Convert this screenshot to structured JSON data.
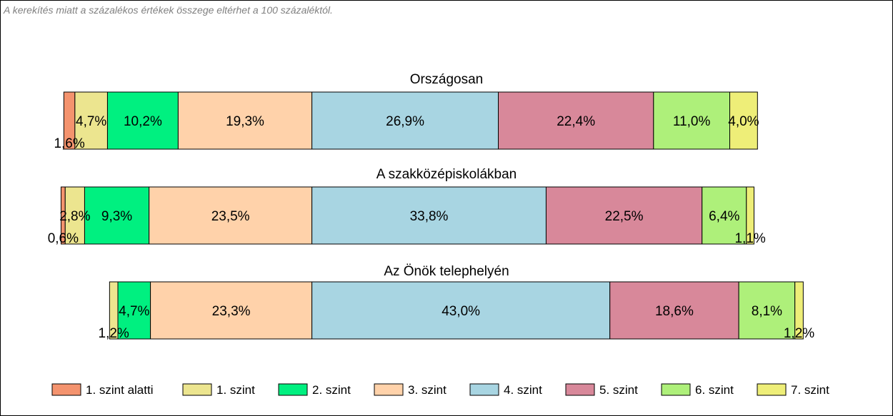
{
  "note": "A kerekítés miatt a  százalékos értékek összege eltérhet a 100 százaléktól.",
  "chart_data": {
    "type": "bar",
    "orientation": "horizontal",
    "stacked": true,
    "percent": true,
    "grid": false,
    "legend_position": "bottom",
    "legend": [
      {
        "label": "1. szint alatti",
        "color": "#F4936E"
      },
      {
        "label": "1. szint",
        "color": "#ECE58F"
      },
      {
        "label": "2. szint",
        "color": "#00F080"
      },
      {
        "label": "3. szint",
        "color": "#FFD2AA"
      },
      {
        "label": "4. szint",
        "color": "#A8D5E2"
      },
      {
        "label": "5. szint",
        "color": "#D8889A"
      },
      {
        "label": "6. szint",
        "color": "#AEF07A"
      },
      {
        "label": "7. szint",
        "color": "#EEEE78"
      }
    ],
    "rows": [
      {
        "title": "Országosan",
        "values": [
          1.6,
          4.7,
          10.2,
          19.3,
          26.9,
          22.4,
          11.0,
          4.0
        ],
        "labels": [
          "1,6%",
          "4,7%",
          "10,2%",
          "19,3%",
          "26,9%",
          "22,4%",
          "11,0%",
          "4,0%"
        ]
      },
      {
        "title": "A szakközépiskolákban",
        "values": [
          0.6,
          2.8,
          9.3,
          23.5,
          33.8,
          22.5,
          6.4,
          1.1
        ],
        "labels": [
          "0,6%",
          "2,8%",
          "9,3%",
          "23,5%",
          "33,8%",
          "22,5%",
          "6,4%",
          "1,1%"
        ]
      },
      {
        "title": "Az Önök telephelyén",
        "values": [
          0.0,
          1.2,
          4.7,
          23.3,
          43.0,
          18.6,
          8.1,
          1.2
        ],
        "labels": [
          "",
          "1,2%",
          "4,7%",
          "23,3%",
          "43,0%",
          "18,6%",
          "8,1%",
          "1,2%"
        ]
      }
    ]
  }
}
